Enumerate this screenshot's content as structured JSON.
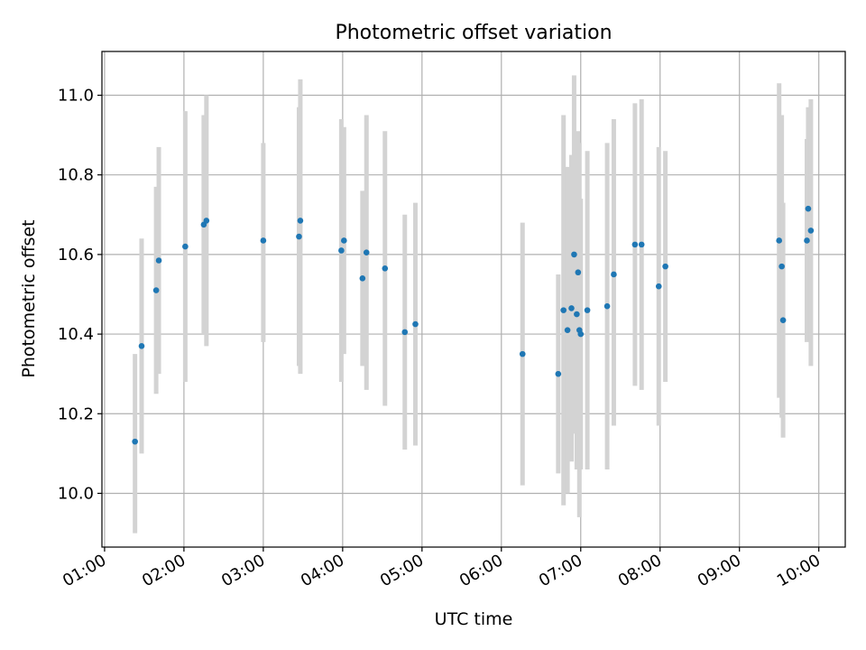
{
  "chart_data": {
    "type": "scatter",
    "title": "Photometric offset variation",
    "xlabel": "UTC time",
    "ylabel": "Photometric offset",
    "x_axis": "time",
    "xlim": [
      "00:58",
      "10:20"
    ],
    "ylim": [
      9.865,
      11.11
    ],
    "xticks": [
      "01:00",
      "02:00",
      "03:00",
      "04:00",
      "05:00",
      "06:00",
      "07:00",
      "08:00",
      "09:00",
      "10:00"
    ],
    "yticks": [
      10.0,
      10.2,
      10.4,
      10.6,
      10.8,
      11.0
    ],
    "grid": true,
    "marker_color": "#1f77b4",
    "errorbar_color": "#d3d3d3",
    "points": [
      {
        "t": "01:23",
        "y": 10.13,
        "lo": 9.9,
        "hi": 10.35
      },
      {
        "t": "01:28",
        "y": 10.37,
        "lo": 10.1,
        "hi": 10.64
      },
      {
        "t": "01:39",
        "y": 10.51,
        "lo": 10.25,
        "hi": 10.77
      },
      {
        "t": "01:41",
        "y": 10.585,
        "lo": 10.3,
        "hi": 10.87
      },
      {
        "t": "02:01",
        "y": 10.62,
        "lo": 10.28,
        "hi": 10.96
      },
      {
        "t": "02:15",
        "y": 10.675,
        "lo": 10.4,
        "hi": 10.95
      },
      {
        "t": "02:17",
        "y": 10.685,
        "lo": 10.37,
        "hi": 11.0
      },
      {
        "t": "03:00",
        "y": 10.635,
        "lo": 10.38,
        "hi": 10.88
      },
      {
        "t": "03:27",
        "y": 10.645,
        "lo": 10.32,
        "hi": 10.97
      },
      {
        "t": "03:28",
        "y": 10.685,
        "lo": 10.3,
        "hi": 11.04
      },
      {
        "t": "03:59",
        "y": 10.61,
        "lo": 10.28,
        "hi": 10.94
      },
      {
        "t": "04:01",
        "y": 10.635,
        "lo": 10.35,
        "hi": 10.92
      },
      {
        "t": "04:15",
        "y": 10.54,
        "lo": 10.32,
        "hi": 10.76
      },
      {
        "t": "04:18",
        "y": 10.605,
        "lo": 10.26,
        "hi": 10.95
      },
      {
        "t": "04:32",
        "y": 10.565,
        "lo": 10.22,
        "hi": 10.91
      },
      {
        "t": "04:47",
        "y": 10.405,
        "lo": 10.11,
        "hi": 10.7
      },
      {
        "t": "04:55",
        "y": 10.425,
        "lo": 10.12,
        "hi": 10.73
      },
      {
        "t": "06:16",
        "y": 10.35,
        "lo": 10.02,
        "hi": 10.68
      },
      {
        "t": "06:43",
        "y": 10.3,
        "lo": 10.05,
        "hi": 10.55
      },
      {
        "t": "06:47",
        "y": 10.46,
        "lo": 9.97,
        "hi": 10.95
      },
      {
        "t": "06:50",
        "y": 10.41,
        "lo": 10.0,
        "hi": 10.82
      },
      {
        "t": "06:53",
        "y": 10.465,
        "lo": 10.08,
        "hi": 10.85
      },
      {
        "t": "06:55",
        "y": 10.6,
        "lo": 10.15,
        "hi": 11.05
      },
      {
        "t": "06:57",
        "y": 10.45,
        "lo": 10.06,
        "hi": 10.84
      },
      {
        "t": "06:58",
        "y": 10.555,
        "lo": 10.2,
        "hi": 10.91
      },
      {
        "t": "06:59",
        "y": 10.41,
        "lo": 9.94,
        "hi": 10.88
      },
      {
        "t": "07:00",
        "y": 10.4,
        "lo": 10.06,
        "hi": 10.74
      },
      {
        "t": "07:05",
        "y": 10.46,
        "lo": 10.06,
        "hi": 10.86
      },
      {
        "t": "07:20",
        "y": 10.47,
        "lo": 10.06,
        "hi": 10.88
      },
      {
        "t": "07:25",
        "y": 10.55,
        "lo": 10.17,
        "hi": 10.94
      },
      {
        "t": "07:41",
        "y": 10.625,
        "lo": 10.27,
        "hi": 10.98
      },
      {
        "t": "07:46",
        "y": 10.625,
        "lo": 10.26,
        "hi": 10.99
      },
      {
        "t": "07:59",
        "y": 10.52,
        "lo": 10.17,
        "hi": 10.87
      },
      {
        "t": "08:04",
        "y": 10.57,
        "lo": 10.28,
        "hi": 10.86
      },
      {
        "t": "09:30",
        "y": 10.635,
        "lo": 10.24,
        "hi": 11.03
      },
      {
        "t": "09:32",
        "y": 10.57,
        "lo": 10.19,
        "hi": 10.95
      },
      {
        "t": "09:33",
        "y": 10.435,
        "lo": 10.14,
        "hi": 10.73
      },
      {
        "t": "09:51",
        "y": 10.635,
        "lo": 10.38,
        "hi": 10.89
      },
      {
        "t": "09:52",
        "y": 10.715,
        "lo": 10.46,
        "hi": 10.97
      },
      {
        "t": "09:54",
        "y": 10.66,
        "lo": 10.32,
        "hi": 10.99
      }
    ]
  }
}
